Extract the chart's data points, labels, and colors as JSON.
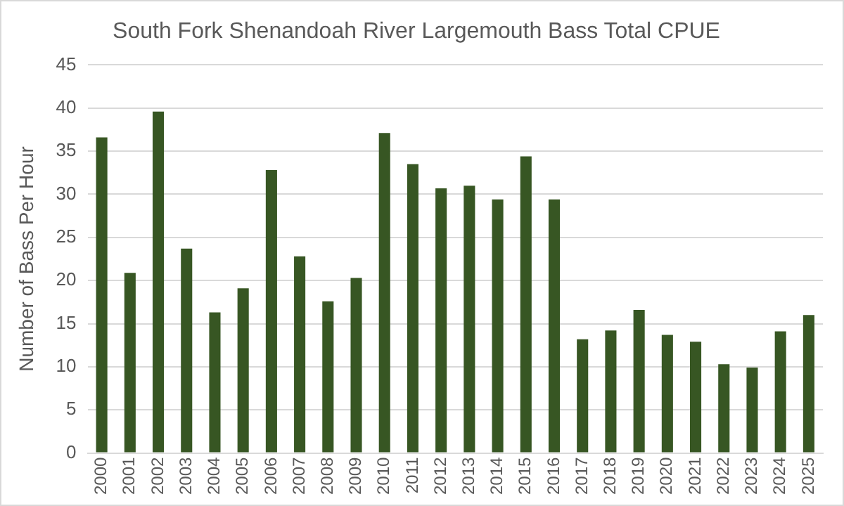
{
  "chart_data": {
    "type": "bar",
    "title": "South Fork Shenandoah River Largemouth Bass Total CPUE",
    "ylabel": "Number of Bass Per Hour",
    "categories": [
      "2000",
      "2001",
      "2002",
      "2003",
      "2004",
      "2005",
      "2006",
      "2007",
      "2008",
      "2009",
      "2010",
      "2011",
      "2012",
      "2013",
      "2014",
      "2015",
      "2016",
      "2017",
      "2018",
      "2019",
      "2020",
      "2021",
      "2022",
      "2023",
      "2024",
      "2025"
    ],
    "values": [
      36.6,
      20.9,
      39.6,
      23.7,
      16.3,
      19.1,
      32.8,
      22.8,
      17.6,
      20.3,
      37.1,
      33.5,
      30.7,
      31.0,
      29.4,
      34.4,
      29.4,
      13.2,
      14.2,
      16.6,
      13.7,
      12.9,
      10.3,
      9.9,
      14.1,
      16.0
    ],
    "color": "#375623",
    "ylim": [
      0,
      45
    ],
    "yticks": [
      0,
      5,
      10,
      15,
      20,
      25,
      30,
      35,
      40,
      45
    ],
    "grid": "y"
  }
}
